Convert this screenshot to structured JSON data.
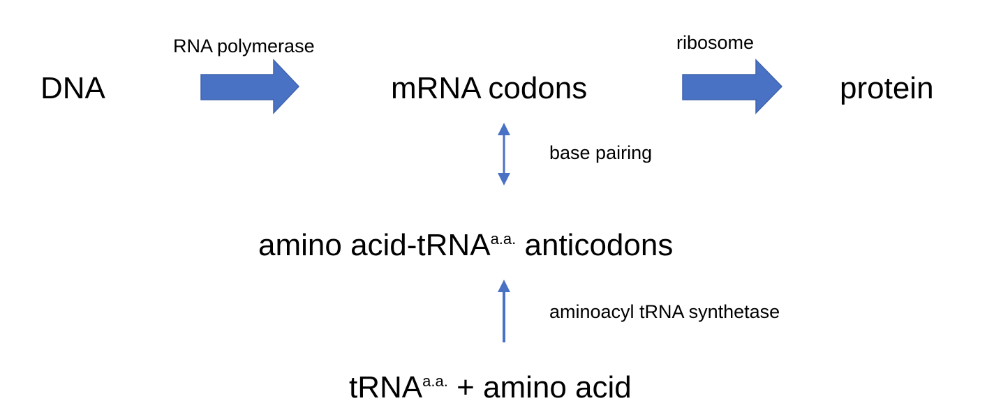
{
  "nodes": {
    "dna": "DNA",
    "mrna": "mRNA codons",
    "protein": "protein",
    "aa_trna_prefix": "amino acid-tRNA",
    "aa_trna_sup": "a.a.",
    "aa_trna_suffix": "anticodons",
    "trna_prefix": "tRNA",
    "trna_sup": "a.a.",
    "trna_suffix": "+ amino acid"
  },
  "edges": {
    "transcription": "RNA polymerase",
    "translation": "ribosome",
    "pairing": "base pairing",
    "charging": "aminoacyl tRNA synthetase"
  },
  "colors": {
    "arrow_fill": "#4A72C4",
    "arrow_stroke": "#3F63AE",
    "text": "#000000"
  }
}
